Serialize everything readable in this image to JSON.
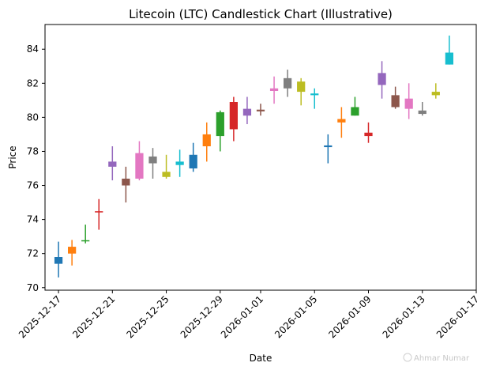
{
  "chart_data": {
    "type": "candlestick",
    "title": "Litecoin (LTC) Candlestick Chart (Illustrative)",
    "xlabel": "Date",
    "ylabel": "Price",
    "ylim": [
      69.85,
      85.45
    ],
    "xlim": [
      "2025-12-16",
      "2026-01-17"
    ],
    "grid": false,
    "legend": "none",
    "y_ticks": [
      70,
      72,
      74,
      76,
      78,
      80,
      82,
      84
    ],
    "x_ticks": [
      "2025-12-17",
      "2025-12-21",
      "2025-12-25",
      "2025-12-29",
      "2026-01-01",
      "2026-01-05",
      "2026-01-09",
      "2026-01-13",
      "2026-01-17"
    ],
    "candles": [
      {
        "date": "2025-12-17",
        "open": 71.8,
        "high": 72.7,
        "low": 70.6,
        "close": 71.4,
        "color": "#1f77b4"
      },
      {
        "date": "2025-12-18",
        "open": 72.0,
        "high": 72.8,
        "low": 71.3,
        "close": 72.4,
        "color": "#ff7f0e"
      },
      {
        "date": "2025-12-19",
        "open": 72.75,
        "high": 73.7,
        "low": 72.6,
        "close": 72.75,
        "color": "#2ca02c"
      },
      {
        "date": "2025-12-20",
        "open": 74.45,
        "high": 75.2,
        "low": 73.4,
        "close": 74.45,
        "color": "#d62728"
      },
      {
        "date": "2025-12-21",
        "open": 77.1,
        "high": 78.3,
        "low": 76.3,
        "close": 77.4,
        "color": "#9467bd"
      },
      {
        "date": "2025-12-22",
        "open": 76.4,
        "high": 77.1,
        "low": 75.0,
        "close": 76.0,
        "color": "#8c564b"
      },
      {
        "date": "2025-12-23",
        "open": 76.4,
        "high": 78.6,
        "low": 76.3,
        "close": 77.9,
        "color": "#e377c2"
      },
      {
        "date": "2025-12-24",
        "open": 77.3,
        "high": 78.2,
        "low": 76.4,
        "close": 77.7,
        "color": "#7f7f7f"
      },
      {
        "date": "2025-12-25",
        "open": 76.8,
        "high": 77.8,
        "low": 76.4,
        "close": 76.5,
        "color": "#bcbd22"
      },
      {
        "date": "2025-12-26",
        "open": 77.2,
        "high": 78.1,
        "low": 76.5,
        "close": 77.4,
        "color": "#17becf"
      },
      {
        "date": "2025-12-27",
        "open": 77.0,
        "high": 78.5,
        "low": 76.8,
        "close": 77.8,
        "color": "#1f77b4"
      },
      {
        "date": "2025-12-28",
        "open": 78.3,
        "high": 79.7,
        "low": 77.4,
        "close": 79.0,
        "color": "#ff7f0e"
      },
      {
        "date": "2025-12-29",
        "open": 78.9,
        "high": 80.4,
        "low": 78.0,
        "close": 80.3,
        "color": "#2ca02c"
      },
      {
        "date": "2025-12-30",
        "open": 80.9,
        "high": 81.2,
        "low": 78.6,
        "close": 79.3,
        "color": "#d62728"
      },
      {
        "date": "2025-12-31",
        "open": 80.1,
        "high": 81.2,
        "low": 79.6,
        "close": 80.5,
        "color": "#9467bd"
      },
      {
        "date": "2026-01-01",
        "open": 80.35,
        "high": 80.8,
        "low": 80.1,
        "close": 80.45,
        "color": "#8c564b"
      },
      {
        "date": "2026-01-02",
        "open": 81.55,
        "high": 82.4,
        "low": 80.8,
        "close": 81.7,
        "color": "#e377c2"
      },
      {
        "date": "2026-01-03",
        "open": 81.7,
        "high": 82.8,
        "low": 81.2,
        "close": 82.3,
        "color": "#7f7f7f"
      },
      {
        "date": "2026-01-04",
        "open": 81.5,
        "high": 82.3,
        "low": 80.7,
        "close": 82.1,
        "color": "#bcbd22"
      },
      {
        "date": "2026-01-05",
        "open": 81.3,
        "high": 81.7,
        "low": 80.5,
        "close": 81.4,
        "color": "#17becf"
      },
      {
        "date": "2026-01-06",
        "open": 78.25,
        "high": 79.0,
        "low": 77.3,
        "close": 78.35,
        "color": "#1f77b4"
      },
      {
        "date": "2026-01-07",
        "open": 79.7,
        "high": 80.6,
        "low": 78.8,
        "close": 79.9,
        "color": "#ff7f0e"
      },
      {
        "date": "2026-01-08",
        "open": 80.1,
        "high": 81.2,
        "low": 80.1,
        "close": 80.6,
        "color": "#2ca02c"
      },
      {
        "date": "2026-01-09",
        "open": 79.1,
        "high": 79.7,
        "low": 78.5,
        "close": 78.9,
        "color": "#d62728"
      },
      {
        "date": "2026-01-10",
        "open": 81.9,
        "high": 83.3,
        "low": 81.1,
        "close": 82.6,
        "color": "#9467bd"
      },
      {
        "date": "2026-01-11",
        "open": 81.3,
        "high": 81.8,
        "low": 80.5,
        "close": 80.6,
        "color": "#8c564b"
      },
      {
        "date": "2026-01-12",
        "open": 80.5,
        "high": 82.0,
        "low": 79.9,
        "close": 81.1,
        "color": "#e377c2"
      },
      {
        "date": "2026-01-13",
        "open": 80.4,
        "high": 80.9,
        "low": 80.1,
        "close": 80.2,
        "color": "#7f7f7f"
      },
      {
        "date": "2026-01-14",
        "open": 81.3,
        "high": 82.0,
        "low": 81.1,
        "close": 81.5,
        "color": "#bcbd22"
      },
      {
        "date": "2026-01-15",
        "open": 83.1,
        "high": 84.8,
        "low": 83.1,
        "close": 83.8,
        "color": "#17becf"
      }
    ]
  },
  "watermark": {
    "text": "Ahmar Numar"
  }
}
